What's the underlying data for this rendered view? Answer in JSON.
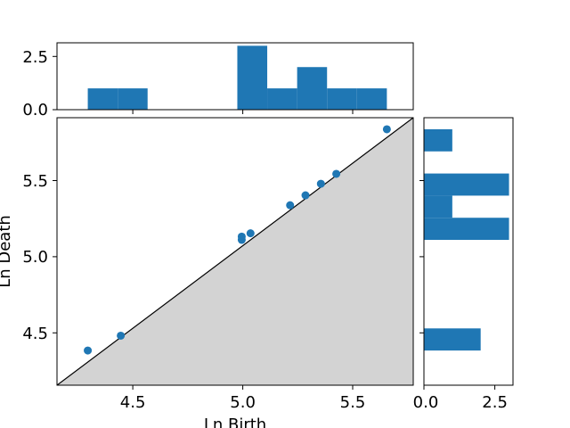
{
  "chart_data": [
    {
      "id": "main",
      "type": "scatter",
      "xlabel": "Ln Birth",
      "ylabel": "Ln Death",
      "xlim": [
        4.16,
        5.78
      ],
      "ylim": [
        4.16,
        5.78
      ],
      "xticks": [
        "4.5",
        "5.0",
        "5.5"
      ],
      "yticks": [
        "4.5",
        "5.0",
        "5.5"
      ],
      "diagonal": true,
      "shade_below_diagonal": true,
      "colors": {
        "point": "#1f77b4",
        "shade": "#d3d3d3",
        "diagonal": "#000000"
      },
      "points": [
        {
          "x": 4.3,
          "y": 4.37
        },
        {
          "x": 4.45,
          "y": 4.46
        },
        {
          "x": 5.0,
          "y": 5.04
        },
        {
          "x": 5.0,
          "y": 5.06
        },
        {
          "x": 5.04,
          "y": 5.08
        },
        {
          "x": 5.22,
          "y": 5.25
        },
        {
          "x": 5.29,
          "y": 5.31
        },
        {
          "x": 5.36,
          "y": 5.38
        },
        {
          "x": 5.43,
          "y": 5.44
        },
        {
          "x": 5.66,
          "y": 5.71
        }
      ]
    },
    {
      "id": "top-histogram",
      "type": "bar",
      "orientation": "vertical",
      "xlim": [
        4.16,
        5.78
      ],
      "ylim": [
        0,
        3.14
      ],
      "yticks": [
        "0.0",
        "2.5"
      ],
      "colors": {
        "bar": "#1f77b4"
      },
      "bins": [
        {
          "start": 4.3,
          "end": 4.436,
          "count": 1
        },
        {
          "start": 4.436,
          "end": 4.572,
          "count": 1
        },
        {
          "start": 4.98,
          "end": 5.116,
          "count": 3
        },
        {
          "start": 5.116,
          "end": 5.252,
          "count": 1
        },
        {
          "start": 5.252,
          "end": 5.388,
          "count": 2
        },
        {
          "start": 5.388,
          "end": 5.524,
          "count": 1
        },
        {
          "start": 5.524,
          "end": 5.66,
          "count": 1
        }
      ]
    },
    {
      "id": "right-histogram",
      "type": "bar",
      "orientation": "horizontal",
      "xlim": [
        0,
        3.14
      ],
      "ylim": [
        4.16,
        5.78
      ],
      "xticks": [
        "0.0",
        "2.5"
      ],
      "colors": {
        "bar": "#1f77b4"
      },
      "bins": [
        {
          "start": 4.37,
          "end": 4.504,
          "count": 2
        },
        {
          "start": 5.04,
          "end": 5.174,
          "count": 3
        },
        {
          "start": 5.174,
          "end": 5.308,
          "count": 1
        },
        {
          "start": 5.308,
          "end": 5.442,
          "count": 3
        },
        {
          "start": 5.576,
          "end": 5.71,
          "count": 1
        }
      ]
    }
  ]
}
